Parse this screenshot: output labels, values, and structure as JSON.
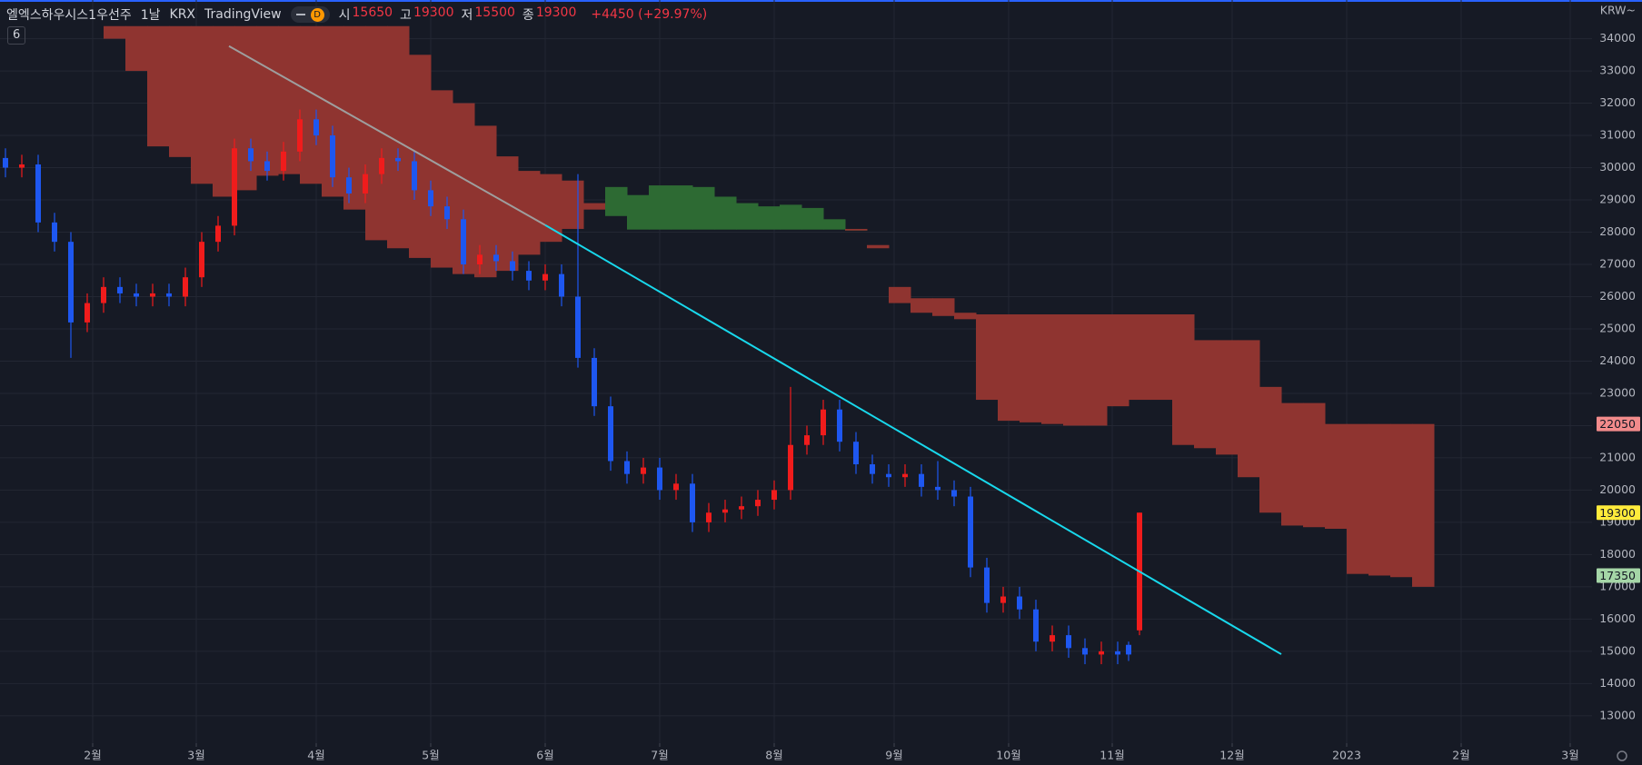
{
  "header": {
    "symbol": "엘엑스하우시스1우선주",
    "interval": "1날",
    "exchange": "KRX",
    "source": "TradingView",
    "badge": "D",
    "ohlc": [
      {
        "label": "시",
        "value": 15650
      },
      {
        "label": "고",
        "value": 19300
      },
      {
        "label": "저",
        "value": 15500
      },
      {
        "label": "종",
        "value": 19300
      }
    ],
    "change": "+4450 (+29.97%)",
    "indicators": "6",
    "currency": "KRW~"
  },
  "chart_data": {
    "type": "candlestick",
    "x": [
      -8,
      -5,
      -2,
      1,
      4,
      7,
      10,
      13,
      16,
      19,
      22,
      25,
      28,
      31,
      34,
      37,
      40,
      43,
      46,
      49,
      52,
      55,
      58,
      61,
      64,
      67,
      70,
      73,
      76,
      79,
      82,
      85,
      88,
      91,
      94,
      97,
      100,
      103,
      106,
      109,
      112,
      115,
      118,
      121,
      124,
      127,
      130,
      133,
      136,
      139,
      142,
      145,
      148,
      151,
      154,
      157,
      160,
      163,
      166,
      169,
      172,
      175,
      178,
      181,
      184,
      187,
      190,
      193,
      196,
      198,
      200
    ],
    "open": [
      30300,
      30000,
      30100,
      28300,
      27700,
      25200,
      25800,
      26300,
      26100,
      26000,
      26100,
      26000,
      26600,
      27700,
      28200,
      30600,
      30200,
      29900,
      30500,
      31500,
      31000,
      29700,
      29200,
      29800,
      30300,
      30200,
      29300,
      28800,
      28400,
      27000,
      27300,
      27100,
      26800,
      26500,
      26700,
      26000,
      24100,
      22600,
      20900,
      20500,
      20700,
      20000,
      20200,
      19000,
      19300,
      19400,
      19500,
      19700,
      20000,
      21400,
      21700,
      22500,
      21500,
      20800,
      20500,
      20400,
      20500,
      20100,
      20000,
      19800,
      17600,
      16500,
      16700,
      16300,
      15300,
      15500,
      15100,
      14900,
      15000,
      15200,
      15650
    ],
    "high": [
      30600,
      30400,
      30400,
      28600,
      28000,
      26100,
      26600,
      26600,
      26400,
      26400,
      26400,
      26900,
      28000,
      28500,
      30900,
      30900,
      30500,
      30800,
      31800,
      31800,
      31300,
      30000,
      30100,
      30600,
      30600,
      30500,
      29600,
      29100,
      28700,
      27600,
      27600,
      27400,
      27100,
      27000,
      27000,
      29800,
      24400,
      22900,
      21200,
      21000,
      21000,
      20500,
      20500,
      19600,
      19700,
      19800,
      20000,
      20300,
      23200,
      22000,
      22800,
      22800,
      21800,
      21100,
      20800,
      20800,
      20800,
      20900,
      20300,
      20100,
      17900,
      17000,
      17000,
      16600,
      15800,
      15800,
      15400,
      15300,
      15300,
      15300,
      19300
    ],
    "low": [
      29700,
      29700,
      28000,
      27400,
      24100,
      24900,
      25500,
      25800,
      25700,
      25700,
      25700,
      25700,
      26300,
      27400,
      27900,
      29900,
      29600,
      29600,
      30200,
      30700,
      29400,
      28900,
      28900,
      29500,
      29900,
      29000,
      28500,
      28100,
      26700,
      26700,
      26800,
      26500,
      26200,
      26200,
      25700,
      23800,
      22300,
      20600,
      20200,
      20200,
      19700,
      19700,
      18700,
      18700,
      19000,
      19100,
      19200,
      19400,
      19700,
      21100,
      21400,
      21200,
      20500,
      20200,
      20100,
      20100,
      19800,
      19700,
      19500,
      17300,
      16200,
      16200,
      16000,
      15000,
      15000,
      14800,
      14600,
      14600,
      14600,
      14700,
      15500
    ],
    "close": [
      30000,
      30100,
      28300,
      27700,
      25200,
      25800,
      26300,
      26100,
      26000,
      26100,
      26000,
      26600,
      27700,
      28200,
      30600,
      30200,
      29900,
      30500,
      31500,
      31000,
      29700,
      29200,
      29800,
      30300,
      30200,
      29300,
      28800,
      28400,
      27000,
      27300,
      27100,
      26800,
      26500,
      26700,
      26000,
      24100,
      22600,
      20900,
      20500,
      20700,
      20000,
      20200,
      19000,
      19300,
      19400,
      19500,
      19700,
      20000,
      21400,
      21700,
      22500,
      21500,
      20800,
      20500,
      20400,
      20500,
      20100,
      20000,
      19800,
      17600,
      16500,
      16700,
      16300,
      15300,
      15500,
      15100,
      14900,
      15000,
      14900,
      14900,
      19300
    ],
    "up_color": "#f01c1c",
    "down_color": "#1e57f0",
    "xlim": [
      -9,
      283
    ],
    "xticks": [
      {
        "value": 8,
        "label": "2월"
      },
      {
        "value": 27,
        "label": "3월"
      },
      {
        "value": 49,
        "label": "4월"
      },
      {
        "value": 70,
        "label": "5월"
      },
      {
        "value": 91,
        "label": "6월"
      },
      {
        "value": 112,
        "label": "7월"
      },
      {
        "value": 133,
        "label": "8월"
      },
      {
        "value": 155,
        "label": "9월"
      },
      {
        "value": 176,
        "label": "10월"
      },
      {
        "value": 195,
        "label": "11월"
      },
      {
        "value": 217,
        "label": "12월"
      },
      {
        "value": 238,
        "label": "2023"
      },
      {
        "value": 259,
        "label": "2월"
      },
      {
        "value": 279,
        "label": "3월"
      }
    ],
    "ylim": [
      12150,
      35200
    ],
    "yticks": [
      13000,
      14000,
      15000,
      16000,
      17000,
      18000,
      19000,
      20000,
      21000,
      22000,
      23000,
      24000,
      25000,
      26000,
      27000,
      28000,
      29000,
      30000,
      31000,
      32000,
      33000,
      34000
    ],
    "grid": true,
    "clouds": [
      {
        "color": "#8f3430",
        "x": [
          10,
          14,
          18,
          22,
          26,
          30,
          34,
          38,
          42,
          46,
          50,
          54,
          58,
          62,
          66,
          70,
          74,
          78,
          82,
          86,
          90,
          94,
          98
        ],
        "top": [
          34390,
          34390,
          34390,
          34390,
          34390,
          34390,
          34390,
          34390,
          34390,
          34390,
          34390,
          34390,
          34390,
          34390,
          33500,
          32400,
          32000,
          31300,
          30350,
          29900,
          29800,
          29600,
          28900
        ],
        "bottom": [
          34000,
          33000,
          30660,
          30330,
          29500,
          29100,
          29300,
          29750,
          29800,
          29500,
          29100,
          28700,
          27750,
          27500,
          27200,
          26900,
          26700,
          26600,
          26800,
          27300,
          27700,
          28100,
          28700
        ]
      },
      {
        "color": "#2d6a33",
        "x": [
          102,
          106,
          110,
          114,
          118,
          122,
          126,
          130,
          134,
          138,
          142,
          146
        ],
        "top": [
          29400,
          29150,
          29450,
          29450,
          29400,
          29100,
          28900,
          28800,
          28850,
          28750,
          28400,
          28100
        ],
        "bottom": [
          28500,
          28080,
          28080,
          28080,
          28080,
          28080,
          28080,
          28080,
          28080,
          28080,
          28080,
          28050
        ]
      },
      {
        "color": "#8f3430",
        "x": [
          146,
          150,
          154,
          158,
          162,
          166,
          170,
          174,
          178,
          182,
          186,
          190,
          194,
          198,
          202,
          206,
          210,
          214,
          218,
          222,
          226,
          230,
          234,
          238,
          242,
          246,
          250
        ],
        "top": [
          28100,
          27500,
          26300,
          25950,
          25950,
          25500,
          25450,
          25450,
          25450,
          25450,
          25450,
          25450,
          25450,
          25450,
          25450,
          25450,
          24650,
          24650,
          24650,
          23200,
          22700,
          22700,
          22050,
          22050,
          22050,
          22050,
          22050
        ],
        "bottom": [
          28050,
          27600,
          25800,
          25500,
          25400,
          25300,
          22800,
          22150,
          22100,
          22050,
          22000,
          22000,
          22600,
          22800,
          22800,
          21400,
          21300,
          21100,
          20400,
          19300,
          18900,
          18850,
          18800,
          17400,
          17350,
          17300,
          17000
        ]
      }
    ],
    "trend_lines": [
      {
        "color": "#9e9e9e",
        "x": [
          33,
          91
        ],
        "y": [
          33770,
          28220
        ]
      },
      {
        "color": "#18d8ec",
        "x": [
          91,
          226
        ],
        "y": [
          28220,
          14910
        ]
      }
    ],
    "price_labels": [
      {
        "value": 22050,
        "color": "#f28b8b"
      },
      {
        "value": 19300,
        "color": "#ffeb3b"
      },
      {
        "value": 17350,
        "color": "#a5d6a7"
      }
    ]
  }
}
